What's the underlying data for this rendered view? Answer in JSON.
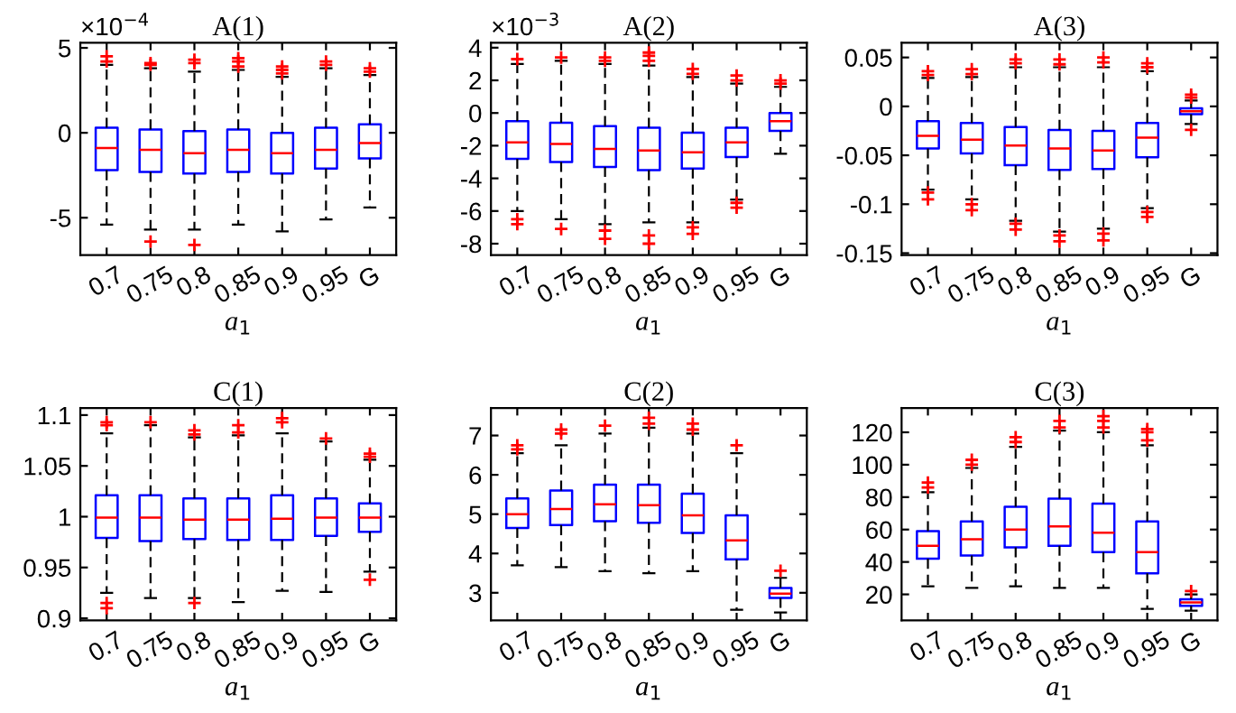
{
  "chart_data": [
    {
      "type": "box",
      "title": "A(1)",
      "xlabel": "a$_{1}$",
      "annotations": [
        "×10$^{−4}$"
      ],
      "categories": [
        "0.7",
        "0.75",
        "0.8",
        "0.85",
        "0.9",
        "0.95",
        "G"
      ],
      "ylim": [
        -7.2,
        5.3
      ],
      "yticks": [
        -5,
        0,
        5
      ],
      "boxes": [
        {
          "low": -5.4,
          "q1": -2.2,
          "median": -0.9,
          "q3": 0.3,
          "high": 4.0,
          "outliers": [
            4.2,
            4.5
          ]
        },
        {
          "low": -5.7,
          "q1": -2.3,
          "median": -1.0,
          "q3": 0.2,
          "high": 3.8,
          "outliers": [
            4.0,
            4.1,
            -6.4
          ]
        },
        {
          "low": -5.7,
          "q1": -2.4,
          "median": -1.2,
          "q3": 0.1,
          "high": 3.6,
          "outliers": [
            4.1,
            4.3,
            -6.6
          ]
        },
        {
          "low": -5.4,
          "q1": -2.3,
          "median": -1.0,
          "q3": 0.2,
          "high": 3.7,
          "outliers": [
            3.9,
            4.2,
            4.4
          ]
        },
        {
          "low": -5.8,
          "q1": -2.4,
          "median": -1.2,
          "q3": 0.0,
          "high": 3.3,
          "outliers": [
            3.5,
            3.7,
            3.9
          ]
        },
        {
          "low": -5.1,
          "q1": -2.1,
          "median": -1.0,
          "q3": 0.3,
          "high": 3.8,
          "outliers": [
            4.0,
            4.2
          ]
        },
        {
          "low": -4.4,
          "q1": -1.5,
          "median": -0.6,
          "q3": 0.5,
          "high": 3.4,
          "outliers": [
            3.6,
            3.8
          ]
        }
      ]
    },
    {
      "type": "box",
      "title": "A(2)",
      "xlabel": "a$_{1}$",
      "annotations": [
        "×10$^{−3}$"
      ],
      "categories": [
        "0.7",
        "0.75",
        "0.8",
        "0.85",
        "0.9",
        "0.95",
        "G"
      ],
      "ylim": [
        -8.7,
        4.3
      ],
      "yticks": [
        -8,
        -6,
        -4,
        -2,
        0,
        2,
        4
      ],
      "boxes": [
        {
          "low": -6.0,
          "q1": -2.8,
          "median": -1.8,
          "q3": -0.5,
          "high": 3.0,
          "outliers": [
            3.3,
            -6.5,
            -6.8
          ]
        },
        {
          "low": -6.5,
          "q1": -3.0,
          "median": -1.9,
          "q3": -0.6,
          "high": 3.2,
          "outliers": [
            3.4,
            -7.1
          ]
        },
        {
          "low": -6.8,
          "q1": -3.3,
          "median": -2.2,
          "q3": -0.8,
          "high": 3.0,
          "outliers": [
            3.2,
            3.4,
            -7.2,
            -7.7
          ]
        },
        {
          "low": -6.7,
          "q1": -3.5,
          "median": -2.3,
          "q3": -0.9,
          "high": 2.9,
          "outliers": [
            3.2,
            3.5,
            3.7,
            -7.5,
            -8.0
          ]
        },
        {
          "low": -6.7,
          "q1": -3.4,
          "median": -2.4,
          "q3": -1.2,
          "high": 2.2,
          "outliers": [
            2.4,
            2.7,
            -7.0,
            -7.4
          ]
        },
        {
          "low": -5.3,
          "q1": -2.7,
          "median": -1.8,
          "q3": -0.9,
          "high": 1.8,
          "outliers": [
            2.0,
            2.3,
            -5.5,
            -5.8
          ]
        },
        {
          "low": -2.5,
          "q1": -1.1,
          "median": -0.5,
          "q3": 0.0,
          "high": 1.6,
          "outliers": [
            1.8,
            2.0
          ]
        }
      ]
    },
    {
      "type": "box",
      "title": "A(3)",
      "xlabel": "a$_{1}$",
      "categories": [
        "0.7",
        "0.75",
        "0.8",
        "0.85",
        "0.9",
        "0.95",
        "G"
      ],
      "ylim": [
        -0.152,
        0.065
      ],
      "yticks": [
        -0.15,
        -0.1,
        -0.05,
        0,
        0.05
      ],
      "boxes": [
        {
          "low": -0.085,
          "q1": -0.043,
          "median": -0.03,
          "q3": -0.015,
          "high": 0.029,
          "outliers": [
            0.032,
            0.036,
            -0.088,
            -0.095
          ]
        },
        {
          "low": -0.095,
          "q1": -0.048,
          "median": -0.034,
          "q3": -0.017,
          "high": 0.03,
          "outliers": [
            0.033,
            0.038,
            -0.1,
            -0.106
          ]
        },
        {
          "low": -0.117,
          "q1": -0.06,
          "median": -0.04,
          "q3": -0.021,
          "high": 0.04,
          "outliers": [
            0.044,
            0.048,
            -0.12,
            -0.126
          ]
        },
        {
          "low": -0.128,
          "q1": -0.065,
          "median": -0.043,
          "q3": -0.024,
          "high": 0.04,
          "outliers": [
            0.043,
            0.048,
            -0.132,
            -0.138
          ]
        },
        {
          "low": -0.125,
          "q1": -0.064,
          "median": -0.045,
          "q3": -0.025,
          "high": 0.04,
          "outliers": [
            0.045,
            0.05,
            -0.13,
            -0.137
          ]
        },
        {
          "low": -0.104,
          "q1": -0.052,
          "median": -0.032,
          "q3": -0.017,
          "high": 0.036,
          "outliers": [
            0.04,
            0.044,
            -0.108,
            -0.113
          ]
        },
        {
          "low": -0.018,
          "q1": -0.008,
          "median": -0.005,
          "q3": -0.002,
          "high": 0.006,
          "outliers": [
            0.009,
            0.012,
            -0.024
          ]
        }
      ]
    },
    {
      "type": "box",
      "title": "C(1)",
      "xlabel": "a$_{1}$",
      "categories": [
        "0.7",
        "0.75",
        "0.8",
        "0.85",
        "0.9",
        "0.95",
        "G"
      ],
      "ylim": [
        0.898,
        1.107
      ],
      "yticks": [
        0.9,
        0.95,
        1,
        1.05,
        1.1
      ],
      "boxes": [
        {
          "low": 0.925,
          "q1": 0.979,
          "median": 0.999,
          "q3": 1.021,
          "high": 1.082,
          "outliers": [
            1.09,
            1.093,
            0.91,
            0.915
          ]
        },
        {
          "low": 0.92,
          "q1": 0.976,
          "median": 0.999,
          "q3": 1.021,
          "high": 1.09,
          "outliers": [
            1.093
          ]
        },
        {
          "low": 0.92,
          "q1": 0.978,
          "median": 0.997,
          "q3": 1.018,
          "high": 1.078,
          "outliers": [
            1.081,
            1.085,
            0.915
          ]
        },
        {
          "low": 0.916,
          "q1": 0.977,
          "median": 0.997,
          "q3": 1.018,
          "high": 1.08,
          "outliers": [
            1.083,
            1.09
          ]
        },
        {
          "low": 0.927,
          "q1": 0.977,
          "median": 0.998,
          "q3": 1.021,
          "high": 1.082,
          "outliers": [
            1.093,
            1.097
          ]
        },
        {
          "low": 0.926,
          "q1": 0.981,
          "median": 0.999,
          "q3": 1.018,
          "high": 1.074,
          "outliers": [
            1.077
          ]
        },
        {
          "low": 0.946,
          "q1": 0.985,
          "median": 0.999,
          "q3": 1.013,
          "high": 1.056,
          "outliers": [
            1.059,
            1.062,
            0.938
          ]
        }
      ]
    },
    {
      "type": "box",
      "title": "C(2)",
      "xlabel": "a$_{1}$",
      "categories": [
        "0.7",
        "0.75",
        "0.8",
        "0.85",
        "0.9",
        "0.95",
        "G"
      ],
      "ylim": [
        2.3,
        7.7
      ],
      "yticks": [
        3,
        4,
        5,
        6,
        7
      ],
      "boxes": [
        {
          "low": 3.7,
          "q1": 4.65,
          "median": 5.0,
          "q3": 5.4,
          "high": 6.55,
          "outliers": [
            6.65,
            6.75
          ]
        },
        {
          "low": 3.65,
          "q1": 4.72,
          "median": 5.13,
          "q3": 5.6,
          "high": 6.75,
          "outliers": [
            7.05,
            7.15
          ]
        },
        {
          "low": 3.55,
          "q1": 4.82,
          "median": 5.25,
          "q3": 5.75,
          "high": 7.05,
          "outliers": [
            7.25
          ]
        },
        {
          "low": 3.5,
          "q1": 4.78,
          "median": 5.23,
          "q3": 5.75,
          "high": 7.2,
          "outliers": [
            7.3,
            7.45
          ]
        },
        {
          "low": 3.55,
          "q1": 4.52,
          "median": 4.97,
          "q3": 5.52,
          "high": 7.05,
          "outliers": [
            7.15,
            7.3
          ]
        },
        {
          "low": 2.57,
          "q1": 3.85,
          "median": 4.33,
          "q3": 4.97,
          "high": 6.55,
          "outliers": [
            6.75
          ]
        },
        {
          "low": 2.5,
          "q1": 2.87,
          "median": 2.98,
          "q3": 3.12,
          "high": 3.38,
          "outliers": [
            3.56
          ]
        }
      ]
    },
    {
      "type": "box",
      "title": "C(3)",
      "xlabel": "a$_{1}$",
      "categories": [
        "0.7",
        "0.75",
        "0.8",
        "0.85",
        "0.9",
        "0.95",
        "G"
      ],
      "ylim": [
        4,
        135
      ],
      "yticks": [
        20,
        40,
        60,
        80,
        100,
        120
      ],
      "boxes": [
        {
          "low": 25,
          "q1": 42,
          "median": 50,
          "q3": 59,
          "high": 83,
          "outliers": [
            86,
            89
          ]
        },
        {
          "low": 24,
          "q1": 44,
          "median": 54,
          "q3": 65,
          "high": 98,
          "outliers": [
            100,
            103
          ]
        },
        {
          "low": 25,
          "q1": 49,
          "median": 60,
          "q3": 74,
          "high": 111,
          "outliers": [
            114,
            117
          ]
        },
        {
          "low": 24,
          "q1": 50,
          "median": 62,
          "q3": 79,
          "high": 121,
          "outliers": [
            123,
            127
          ]
        },
        {
          "low": 24,
          "q1": 46,
          "median": 58,
          "q3": 76,
          "high": 120,
          "outliers": [
            123,
            127,
            130
          ]
        },
        {
          "low": 11,
          "q1": 33,
          "median": 46,
          "q3": 65,
          "high": 112,
          "outliers": [
            115,
            120,
            122
          ]
        },
        {
          "low": 10,
          "q1": 13,
          "median": 15,
          "q3": 17,
          "high": 20,
          "outliers": [
            22
          ]
        }
      ]
    }
  ]
}
